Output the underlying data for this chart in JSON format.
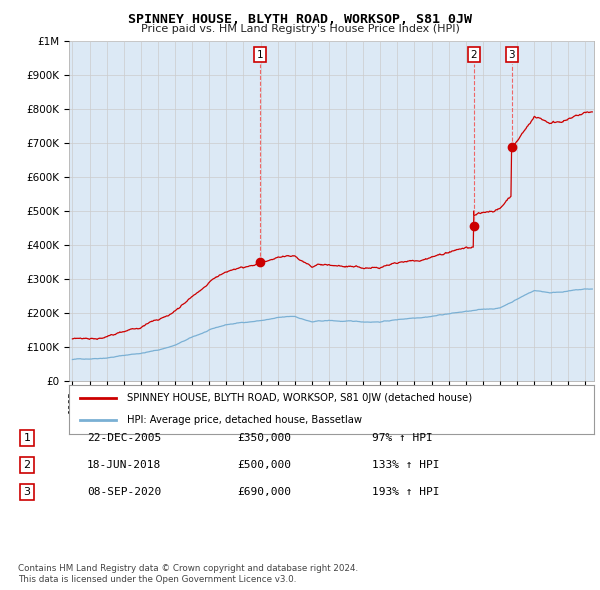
{
  "title": "SPINNEY HOUSE, BLYTH ROAD, WORKSOP, S81 0JW",
  "subtitle": "Price paid vs. HM Land Registry's House Price Index (HPI)",
  "legend_line1": "SPINNEY HOUSE, BLYTH ROAD, WORKSOP, S81 0JW (detached house)",
  "legend_line2": "HPI: Average price, detached house, Bassetlaw",
  "footer1": "Contains HM Land Registry data © Crown copyright and database right 2024.",
  "footer2": "This data is licensed under the Open Government Licence v3.0.",
  "sales": [
    {
      "num": "1",
      "date": "22-DEC-2005",
      "price": "£350,000",
      "pct": "97% ↑ HPI",
      "year": 2005.97,
      "price_val": 350000
    },
    {
      "num": "2",
      "date": "18-JUN-2018",
      "price": "£500,000",
      "pct": "133% ↑ HPI",
      "year": 2018.46,
      "price_val": 500000
    },
    {
      "num": "3",
      "date": "08-SEP-2020",
      "price": "£690,000",
      "pct": "193% ↑ HPI",
      "year": 2020.69,
      "price_val": 690000
    }
  ],
  "red_color": "#cc0000",
  "blue_color": "#7ab0d4",
  "fill_color": "#dce9f5",
  "ylim": [
    0,
    1000000
  ],
  "xlim": [
    1994.8,
    2025.5
  ],
  "background": "#ffffff",
  "grid_color": "#cccccc",
  "hpi_pts": {
    "1995.0": 62000,
    "1996.0": 65000,
    "1997.0": 70000,
    "1998.0": 77000,
    "1999.0": 84000,
    "2000.0": 93000,
    "2001.0": 108000,
    "2002.0": 130000,
    "2003.0": 150000,
    "2004.0": 165000,
    "2005.0": 172000,
    "2006.0": 178000,
    "2007.0": 185000,
    "2008.0": 188000,
    "2009.0": 172000,
    "2010.0": 175000,
    "2011.0": 172000,
    "2012.0": 170000,
    "2013.0": 172000,
    "2014.0": 178000,
    "2015.0": 185000,
    "2016.0": 192000,
    "2017.0": 200000,
    "2018.0": 206000,
    "2019.0": 210000,
    "2020.0": 215000,
    "2021.0": 242000,
    "2022.0": 268000,
    "2023.0": 262000,
    "2024.0": 268000,
    "2025.0": 272000
  }
}
